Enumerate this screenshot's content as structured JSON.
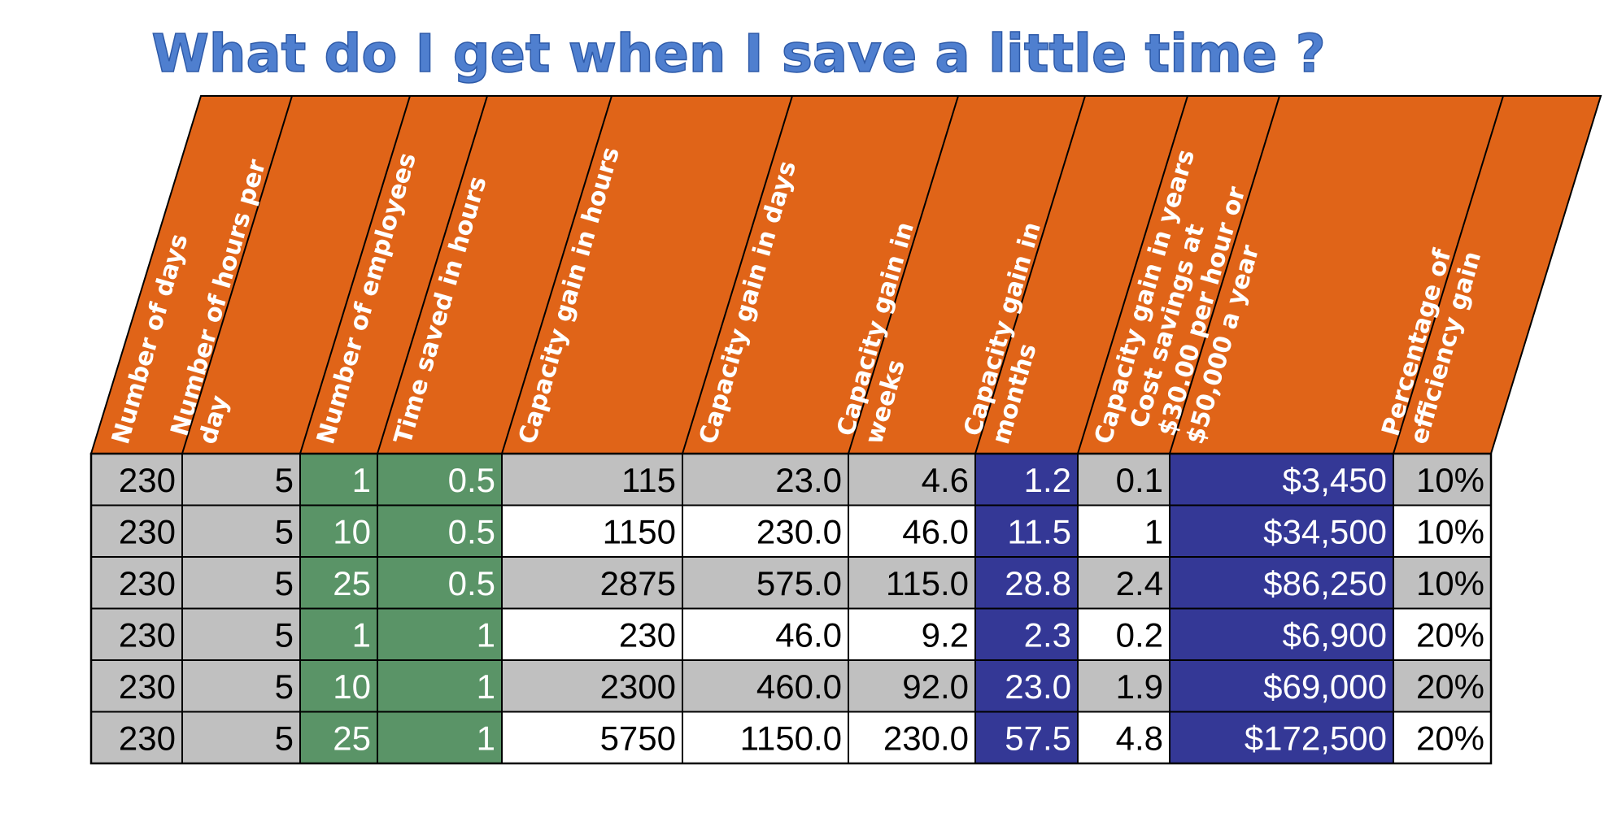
{
  "title": "What do I get when I save a little time ?",
  "colors": {
    "header_orange": "#e06418",
    "gray": "#c0c0c0",
    "green": "#5a9467",
    "navy": "#343896",
    "white": "#ffffff",
    "title_blue": "#4f7fcf",
    "border": "#000000"
  },
  "chart_data": {
    "type": "table",
    "columns": [
      {
        "lines": [
          "Number of days"
        ]
      },
      {
        "lines": [
          "Number of hours per",
          "day"
        ]
      },
      {
        "lines": [
          "Number of employees"
        ]
      },
      {
        "lines": [
          "Time saved in hours"
        ]
      },
      {
        "lines": [
          "Capacity gain in hours"
        ]
      },
      {
        "lines": [
          "Capacity gain in days"
        ]
      },
      {
        "lines": [
          "Capacity gain in",
          "weeks"
        ]
      },
      {
        "lines": [
          "Capacity gain in",
          "months"
        ]
      },
      {
        "lines": [
          "Capacity gain in years"
        ]
      },
      {
        "lines": [
          "Cost savings at",
          "$30.00 per hour or",
          "$50,000 a year"
        ]
      },
      {
        "lines": [
          "Percentage of",
          "efficiency gain"
        ]
      }
    ],
    "rows": [
      [
        "230",
        "5",
        "1",
        "0.5",
        "115",
        "23.0",
        "4.6",
        "1.2",
        "0.1",
        "$3,450",
        "10%"
      ],
      [
        "230",
        "5",
        "10",
        "0.5",
        "1150",
        "230.0",
        "46.0",
        "11.5",
        "1",
        "$34,500",
        "10%"
      ],
      [
        "230",
        "5",
        "25",
        "0.5",
        "2875",
        "575.0",
        "115.0",
        "28.8",
        "2.4",
        "$86,250",
        "10%"
      ],
      [
        "230",
        "5",
        "1",
        "1",
        "230",
        "46.0",
        "9.2",
        "2.3",
        "0.2",
        "$6,900",
        "20%"
      ],
      [
        "230",
        "5",
        "10",
        "1",
        "2300",
        "460.0",
        "92.0",
        "23.0",
        "1.9",
        "$69,000",
        "20%"
      ],
      [
        "230",
        "5",
        "25",
        "1",
        "5750",
        "1150.0",
        "230.0",
        "57.5",
        "4.8",
        "$172,500",
        "20%"
      ]
    ],
    "column_fill": [
      "gray",
      "gray",
      "green",
      "green",
      "alt",
      "alt",
      "alt",
      "navy",
      "alt",
      "navy",
      "alt"
    ],
    "row_shade": [
      "gray",
      "white",
      "gray",
      "white",
      "gray",
      "white"
    ]
  }
}
